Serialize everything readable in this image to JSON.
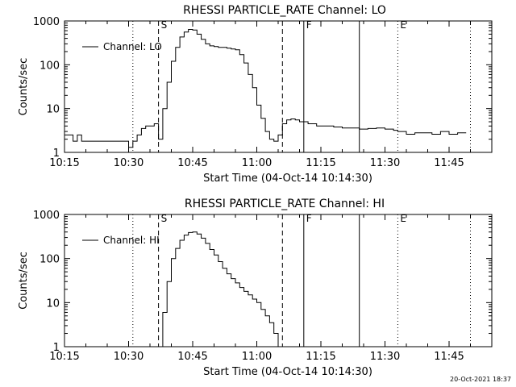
{
  "footer_text": "20-Oct-2021 18:37",
  "line_color": "#000000",
  "background": "#ffffff",
  "chart_data": [
    {
      "type": "line",
      "title": "RHESSI PARTICLE_RATE Channel: LO",
      "xlabel": "Start Time (04-Oct-14 10:14:30)",
      "ylabel": "Counts/sec",
      "yscale": "log",
      "ylim": [
        1,
        1000
      ],
      "xlim": [
        "10:15",
        "11:55"
      ],
      "xtick_labels": [
        "10:15",
        "10:30",
        "10:45",
        "11:00",
        "11:15",
        "11:30",
        "11:45"
      ],
      "ytick_labels": [
        "1",
        "10",
        "100",
        "1000"
      ],
      "legend": {
        "entries": [
          "Channel: LO"
        ],
        "placement": "upper-left"
      },
      "markers": [
        {
          "label": "",
          "time": "10:31",
          "style": "dotted"
        },
        {
          "label": "S",
          "time": "10:37",
          "style": "dashed"
        },
        {
          "label": "",
          "time": "11:06",
          "style": "dashed"
        },
        {
          "label": "F",
          "time": "11:11",
          "style": "solid"
        },
        {
          "label": "",
          "time": "11:24",
          "style": "solid"
        },
        {
          "label": "E",
          "time": "11:33",
          "style": "dotted"
        },
        {
          "label": "",
          "time": "11:50",
          "style": "dotted"
        }
      ],
      "series": [
        {
          "name": "Channel: LO",
          "x": [
            "10:15",
            "10:16",
            "10:17",
            "10:18",
            "10:19",
            "10:20",
            "10:21",
            "10:22",
            "10:23",
            "10:24",
            "10:25",
            "10:26",
            "10:27",
            "10:28",
            "10:29",
            "10:30",
            "10:31",
            "10:32",
            "10:33",
            "10:34",
            "10:35",
            "10:36",
            "10:37",
            "10:38",
            "10:39",
            "10:40",
            "10:41",
            "10:42",
            "10:43",
            "10:44",
            "10:45",
            "10:46",
            "10:47",
            "10:48",
            "10:49",
            "10:50",
            "10:51",
            "10:52",
            "10:53",
            "10:54",
            "10:55",
            "10:56",
            "10:57",
            "10:58",
            "10:59",
            "11:00",
            "11:01",
            "11:02",
            "11:03",
            "11:04",
            "11:05",
            "11:06",
            "11:07",
            "11:08",
            "11:09",
            "11:10",
            "11:12",
            "11:14",
            "11:16",
            "11:18",
            "11:20",
            "11:22",
            "11:24",
            "11:26",
            "11:28",
            "11:30",
            "11:32",
            "11:33",
            "11:35",
            "11:37",
            "11:39",
            "11:41",
            "11:43",
            "11:45",
            "11:47",
            "11:49"
          ],
          "y": [
            2.5,
            2.5,
            1.8,
            2.5,
            1.8,
            1.8,
            1.8,
            1.8,
            1.8,
            1.8,
            1.8,
            1.8,
            1.8,
            1.8,
            1.8,
            1.3,
            1.8,
            2.5,
            3.5,
            4.0,
            4.0,
            4.5,
            2.0,
            10,
            40,
            120,
            250,
            430,
            560,
            640,
            620,
            500,
            380,
            300,
            270,
            260,
            250,
            250,
            240,
            230,
            220,
            170,
            110,
            60,
            30,
            12,
            6,
            3,
            2,
            1.8,
            2.5,
            4.5,
            5.5,
            5.8,
            5.5,
            5.0,
            4.5,
            4.0,
            4.0,
            3.8,
            3.6,
            3.6,
            3.4,
            3.5,
            3.6,
            3.4,
            3.2,
            3.0,
            2.6,
            2.8,
            2.8,
            2.6,
            3.0,
            2.6,
            2.8,
            2.8
          ]
        }
      ]
    },
    {
      "type": "line",
      "title": "RHESSI PARTICLE_RATE Channel: HI",
      "xlabel": "Start Time (04-Oct-14 10:14:30)",
      "ylabel": "Counts/sec",
      "yscale": "log",
      "ylim": [
        1,
        1000
      ],
      "xlim": [
        "10:15",
        "11:55"
      ],
      "xtick_labels": [
        "10:15",
        "10:30",
        "10:45",
        "11:00",
        "11:15",
        "11:30",
        "11:45"
      ],
      "ytick_labels": [
        "1",
        "10",
        "100",
        "1000"
      ],
      "legend": {
        "entries": [
          "Channel: HI"
        ],
        "placement": "upper-left"
      },
      "markers": [
        {
          "label": "",
          "time": "10:31",
          "style": "dotted"
        },
        {
          "label": "S",
          "time": "10:37",
          "style": "dashed"
        },
        {
          "label": "",
          "time": "11:06",
          "style": "dashed"
        },
        {
          "label": "F",
          "time": "11:11",
          "style": "solid"
        },
        {
          "label": "",
          "time": "11:24",
          "style": "solid"
        },
        {
          "label": "E",
          "time": "11:33",
          "style": "dotted"
        },
        {
          "label": "",
          "time": "11:50",
          "style": "dotted"
        }
      ],
      "series": [
        {
          "name": "Channel: HI",
          "x": [
            "10:37",
            "10:38",
            "10:39",
            "10:40",
            "10:41",
            "10:42",
            "10:43",
            "10:44",
            "10:45",
            "10:46",
            "10:47",
            "10:48",
            "10:49",
            "10:50",
            "10:51",
            "10:52",
            "10:53",
            "10:54",
            "10:55",
            "10:56",
            "10:57",
            "10:58",
            "10:59",
            "11:00",
            "11:01",
            "11:02",
            "11:03",
            "11:04",
            "11:05"
          ],
          "y": [
            1.0,
            6,
            30,
            100,
            170,
            260,
            340,
            390,
            400,
            360,
            290,
            220,
            160,
            120,
            85,
            60,
            45,
            35,
            28,
            22,
            18,
            15,
            12,
            10,
            7,
            5,
            3.5,
            2,
            1.0
          ]
        }
      ]
    }
  ]
}
